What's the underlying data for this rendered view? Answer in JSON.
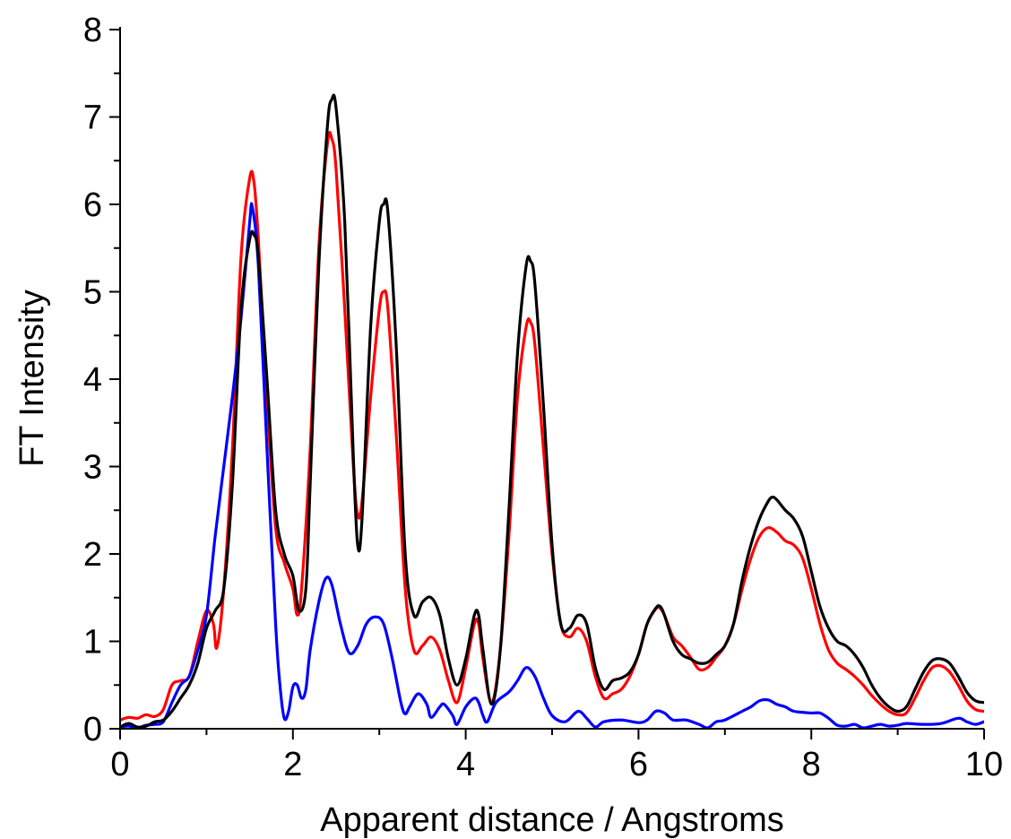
{
  "chart_data": {
    "type": "line",
    "title": "",
    "xlabel": "Apparent distance / Angstroms",
    "ylabel": "FT Intensity",
    "xlim": [
      0,
      10
    ],
    "ylim": [
      0,
      8
    ],
    "x_ticks": [
      "0",
      "2",
      "4",
      "6",
      "8",
      "10"
    ],
    "y_ticks": [
      "0",
      "1",
      "2",
      "3",
      "4",
      "5",
      "6",
      "7",
      "8"
    ],
    "grid": false,
    "legend": "none",
    "series": [
      {
        "color": "#ff0000",
        "points": [
          [
            0,
            0.1
          ],
          [
            0.1,
            0.13
          ],
          [
            0.2,
            0.12
          ],
          [
            0.3,
            0.16
          ],
          [
            0.4,
            0.14
          ],
          [
            0.5,
            0.22
          ],
          [
            0.6,
            0.5
          ],
          [
            0.7,
            0.55
          ],
          [
            0.8,
            0.6
          ],
          [
            0.9,
            1.0
          ],
          [
            1.0,
            1.35
          ],
          [
            1.08,
            1.2
          ],
          [
            1.12,
            0.93
          ],
          [
            1.2,
            1.6
          ],
          [
            1.3,
            3.2
          ],
          [
            1.4,
            5.4
          ],
          [
            1.5,
            6.3
          ],
          [
            1.55,
            6.25
          ],
          [
            1.6,
            5.6
          ],
          [
            1.7,
            3.8
          ],
          [
            1.8,
            2.3
          ],
          [
            1.9,
            1.9
          ],
          [
            2.0,
            1.6
          ],
          [
            2.05,
            1.3
          ],
          [
            2.1,
            1.6
          ],
          [
            2.2,
            3.2
          ],
          [
            2.3,
            5.5
          ],
          [
            2.4,
            6.7
          ],
          [
            2.45,
            6.75
          ],
          [
            2.5,
            6.4
          ],
          [
            2.6,
            4.8
          ],
          [
            2.7,
            3.0
          ],
          [
            2.75,
            2.45
          ],
          [
            2.8,
            2.6
          ],
          [
            2.9,
            3.8
          ],
          [
            3.0,
            4.8
          ],
          [
            3.05,
            5.0
          ],
          [
            3.1,
            4.8
          ],
          [
            3.2,
            3.3
          ],
          [
            3.3,
            1.6
          ],
          [
            3.4,
            0.9
          ],
          [
            3.5,
            0.95
          ],
          [
            3.6,
            1.05
          ],
          [
            3.7,
            0.9
          ],
          [
            3.8,
            0.55
          ],
          [
            3.9,
            0.3
          ],
          [
            4.0,
            0.7
          ],
          [
            4.1,
            1.2
          ],
          [
            4.15,
            1.2
          ],
          [
            4.2,
            0.8
          ],
          [
            4.3,
            0.3
          ],
          [
            4.4,
            0.9
          ],
          [
            4.5,
            2.2
          ],
          [
            4.6,
            3.8
          ],
          [
            4.7,
            4.6
          ],
          [
            4.75,
            4.65
          ],
          [
            4.8,
            4.4
          ],
          [
            4.9,
            3.2
          ],
          [
            5.0,
            2.0
          ],
          [
            5.1,
            1.2
          ],
          [
            5.2,
            1.05
          ],
          [
            5.3,
            1.15
          ],
          [
            5.4,
            1.0
          ],
          [
            5.5,
            0.6
          ],
          [
            5.6,
            0.35
          ],
          [
            5.7,
            0.4
          ],
          [
            5.8,
            0.45
          ],
          [
            5.9,
            0.6
          ],
          [
            6.0,
            0.85
          ],
          [
            6.1,
            1.2
          ],
          [
            6.2,
            1.37
          ],
          [
            6.25,
            1.38
          ],
          [
            6.3,
            1.3
          ],
          [
            6.4,
            1.05
          ],
          [
            6.5,
            0.95
          ],
          [
            6.6,
            0.82
          ],
          [
            6.7,
            0.68
          ],
          [
            6.8,
            0.7
          ],
          [
            6.9,
            0.82
          ],
          [
            7.0,
            0.95
          ],
          [
            7.1,
            1.2
          ],
          [
            7.2,
            1.6
          ],
          [
            7.3,
            1.95
          ],
          [
            7.4,
            2.2
          ],
          [
            7.5,
            2.3
          ],
          [
            7.6,
            2.25
          ],
          [
            7.7,
            2.15
          ],
          [
            7.8,
            2.1
          ],
          [
            7.9,
            1.95
          ],
          [
            8.0,
            1.6
          ],
          [
            8.1,
            1.2
          ],
          [
            8.2,
            0.9
          ],
          [
            8.3,
            0.75
          ],
          [
            8.4,
            0.68
          ],
          [
            8.5,
            0.6
          ],
          [
            8.6,
            0.5
          ],
          [
            8.7,
            0.38
          ],
          [
            8.8,
            0.28
          ],
          [
            8.9,
            0.2
          ],
          [
            9.0,
            0.16
          ],
          [
            9.1,
            0.18
          ],
          [
            9.2,
            0.35
          ],
          [
            9.3,
            0.55
          ],
          [
            9.4,
            0.7
          ],
          [
            9.5,
            0.72
          ],
          [
            9.6,
            0.65
          ],
          [
            9.7,
            0.5
          ],
          [
            9.8,
            0.32
          ],
          [
            9.9,
            0.22
          ],
          [
            10.0,
            0.2
          ]
        ]
      },
      {
        "color": "#0000ff",
        "points": [
          [
            0,
            0.02
          ],
          [
            0.1,
            0.03
          ],
          [
            0.2,
            0.01
          ],
          [
            0.3,
            0.04
          ],
          [
            0.4,
            0.05
          ],
          [
            0.5,
            0.08
          ],
          [
            0.6,
            0.3
          ],
          [
            0.7,
            0.5
          ],
          [
            0.8,
            0.6
          ],
          [
            0.9,
            0.9
          ],
          [
            1.0,
            1.3
          ],
          [
            1.1,
            2.2
          ],
          [
            1.2,
            3.0
          ],
          [
            1.3,
            3.8
          ],
          [
            1.4,
            4.7
          ],
          [
            1.5,
            5.8
          ],
          [
            1.53,
            5.97
          ],
          [
            1.6,
            5.3
          ],
          [
            1.7,
            3.2
          ],
          [
            1.8,
            1.2
          ],
          [
            1.85,
            0.5
          ],
          [
            1.9,
            0.12
          ],
          [
            1.95,
            0.2
          ],
          [
            2.0,
            0.48
          ],
          [
            2.05,
            0.5
          ],
          [
            2.1,
            0.35
          ],
          [
            2.15,
            0.45
          ],
          [
            2.2,
            0.9
          ],
          [
            2.3,
            1.45
          ],
          [
            2.38,
            1.72
          ],
          [
            2.45,
            1.65
          ],
          [
            2.55,
            1.2
          ],
          [
            2.65,
            0.87
          ],
          [
            2.75,
            0.95
          ],
          [
            2.85,
            1.2
          ],
          [
            2.95,
            1.28
          ],
          [
            3.05,
            1.2
          ],
          [
            3.15,
            0.8
          ],
          [
            3.25,
            0.3
          ],
          [
            3.3,
            0.17
          ],
          [
            3.35,
            0.25
          ],
          [
            3.45,
            0.4
          ],
          [
            3.55,
            0.28
          ],
          [
            3.6,
            0.13
          ],
          [
            3.7,
            0.25
          ],
          [
            3.75,
            0.28
          ],
          [
            3.85,
            0.15
          ],
          [
            3.9,
            0.05
          ],
          [
            4.0,
            0.25
          ],
          [
            4.1,
            0.35
          ],
          [
            4.15,
            0.3
          ],
          [
            4.2,
            0.15
          ],
          [
            4.25,
            0.08
          ],
          [
            4.35,
            0.3
          ],
          [
            4.5,
            0.42
          ],
          [
            4.6,
            0.55
          ],
          [
            4.7,
            0.7
          ],
          [
            4.8,
            0.6
          ],
          [
            4.9,
            0.35
          ],
          [
            5.0,
            0.15
          ],
          [
            5.15,
            0.08
          ],
          [
            5.3,
            0.2
          ],
          [
            5.4,
            0.12
          ],
          [
            5.5,
            0.02
          ],
          [
            5.6,
            0.08
          ],
          [
            5.8,
            0.1
          ],
          [
            6.0,
            0.07
          ],
          [
            6.1,
            0.1
          ],
          [
            6.2,
            0.2
          ],
          [
            6.3,
            0.18
          ],
          [
            6.4,
            0.1
          ],
          [
            6.55,
            0.1
          ],
          [
            6.7,
            0.05
          ],
          [
            6.8,
            0.01
          ],
          [
            6.9,
            0.08
          ],
          [
            7.0,
            0.1
          ],
          [
            7.2,
            0.2
          ],
          [
            7.3,
            0.25
          ],
          [
            7.4,
            0.32
          ],
          [
            7.5,
            0.33
          ],
          [
            7.6,
            0.28
          ],
          [
            7.7,
            0.25
          ],
          [
            7.8,
            0.2
          ],
          [
            8.0,
            0.18
          ],
          [
            8.1,
            0.18
          ],
          [
            8.2,
            0.12
          ],
          [
            8.3,
            0.04
          ],
          [
            8.4,
            0.03
          ],
          [
            8.5,
            0.05
          ],
          [
            8.6,
            0.01
          ],
          [
            8.7,
            0.03
          ],
          [
            8.8,
            0.05
          ],
          [
            8.9,
            0.03
          ],
          [
            9.0,
            0.04
          ],
          [
            9.1,
            0.06
          ],
          [
            9.3,
            0.05
          ],
          [
            9.5,
            0.06
          ],
          [
            9.7,
            0.12
          ],
          [
            9.8,
            0.08
          ],
          [
            9.9,
            0.05
          ],
          [
            10.0,
            0.08
          ]
        ]
      },
      {
        "color": "#000000",
        "points": [
          [
            0,
            0.02
          ],
          [
            0.1,
            0.06
          ],
          [
            0.2,
            0.02
          ],
          [
            0.3,
            0.03
          ],
          [
            0.4,
            0.08
          ],
          [
            0.5,
            0.1
          ],
          [
            0.6,
            0.2
          ],
          [
            0.7,
            0.35
          ],
          [
            0.8,
            0.5
          ],
          [
            0.9,
            0.75
          ],
          [
            1.0,
            1.15
          ],
          [
            1.1,
            1.35
          ],
          [
            1.2,
            1.6
          ],
          [
            1.3,
            2.8
          ],
          [
            1.4,
            4.8
          ],
          [
            1.5,
            5.6
          ],
          [
            1.55,
            5.65
          ],
          [
            1.6,
            5.4
          ],
          [
            1.7,
            4.0
          ],
          [
            1.8,
            2.5
          ],
          [
            1.9,
            2.0
          ],
          [
            2.0,
            1.75
          ],
          [
            2.07,
            1.35
          ],
          [
            2.15,
            1.6
          ],
          [
            2.2,
            2.8
          ],
          [
            2.3,
            5.3
          ],
          [
            2.4,
            6.9
          ],
          [
            2.45,
            7.2
          ],
          [
            2.5,
            7.1
          ],
          [
            2.6,
            5.8
          ],
          [
            2.7,
            3.1
          ],
          [
            2.75,
            2.1
          ],
          [
            2.8,
            2.4
          ],
          [
            2.9,
            4.6
          ],
          [
            3.0,
            5.8
          ],
          [
            3.05,
            6.0
          ],
          [
            3.1,
            5.9
          ],
          [
            3.2,
            4.3
          ],
          [
            3.3,
            2.0
          ],
          [
            3.4,
            1.3
          ],
          [
            3.5,
            1.45
          ],
          [
            3.6,
            1.5
          ],
          [
            3.7,
            1.3
          ],
          [
            3.8,
            0.8
          ],
          [
            3.9,
            0.5
          ],
          [
            4.0,
            0.8
          ],
          [
            4.1,
            1.3
          ],
          [
            4.15,
            1.3
          ],
          [
            4.2,
            0.9
          ],
          [
            4.3,
            0.28
          ],
          [
            4.4,
            0.9
          ],
          [
            4.5,
            2.5
          ],
          [
            4.6,
            4.3
          ],
          [
            4.7,
            5.3
          ],
          [
            4.75,
            5.35
          ],
          [
            4.8,
            5.1
          ],
          [
            4.9,
            3.7
          ],
          [
            5.0,
            2.1
          ],
          [
            5.1,
            1.2
          ],
          [
            5.2,
            1.15
          ],
          [
            5.3,
            1.3
          ],
          [
            5.4,
            1.2
          ],
          [
            5.5,
            0.7
          ],
          [
            5.6,
            0.45
          ],
          [
            5.7,
            0.55
          ],
          [
            5.8,
            0.58
          ],
          [
            5.9,
            0.65
          ],
          [
            6.0,
            0.85
          ],
          [
            6.1,
            1.2
          ],
          [
            6.2,
            1.38
          ],
          [
            6.25,
            1.4
          ],
          [
            6.3,
            1.3
          ],
          [
            6.4,
            1.0
          ],
          [
            6.5,
            0.85
          ],
          [
            6.6,
            0.8
          ],
          [
            6.7,
            0.75
          ],
          [
            6.8,
            0.76
          ],
          [
            6.9,
            0.85
          ],
          [
            7.0,
            0.95
          ],
          [
            7.1,
            1.2
          ],
          [
            7.2,
            1.7
          ],
          [
            7.3,
            2.1
          ],
          [
            7.4,
            2.4
          ],
          [
            7.5,
            2.6
          ],
          [
            7.55,
            2.65
          ],
          [
            7.6,
            2.62
          ],
          [
            7.7,
            2.5
          ],
          [
            7.8,
            2.4
          ],
          [
            7.9,
            2.2
          ],
          [
            8.0,
            1.8
          ],
          [
            8.1,
            1.4
          ],
          [
            8.2,
            1.15
          ],
          [
            8.3,
            1.0
          ],
          [
            8.4,
            0.95
          ],
          [
            8.5,
            0.85
          ],
          [
            8.6,
            0.7
          ],
          [
            8.7,
            0.5
          ],
          [
            8.8,
            0.35
          ],
          [
            8.9,
            0.25
          ],
          [
            9.0,
            0.2
          ],
          [
            9.1,
            0.25
          ],
          [
            9.2,
            0.45
          ],
          [
            9.3,
            0.65
          ],
          [
            9.4,
            0.78
          ],
          [
            9.5,
            0.8
          ],
          [
            9.6,
            0.75
          ],
          [
            9.7,
            0.6
          ],
          [
            9.8,
            0.42
          ],
          [
            9.9,
            0.32
          ],
          [
            10.0,
            0.3
          ]
        ]
      }
    ]
  }
}
